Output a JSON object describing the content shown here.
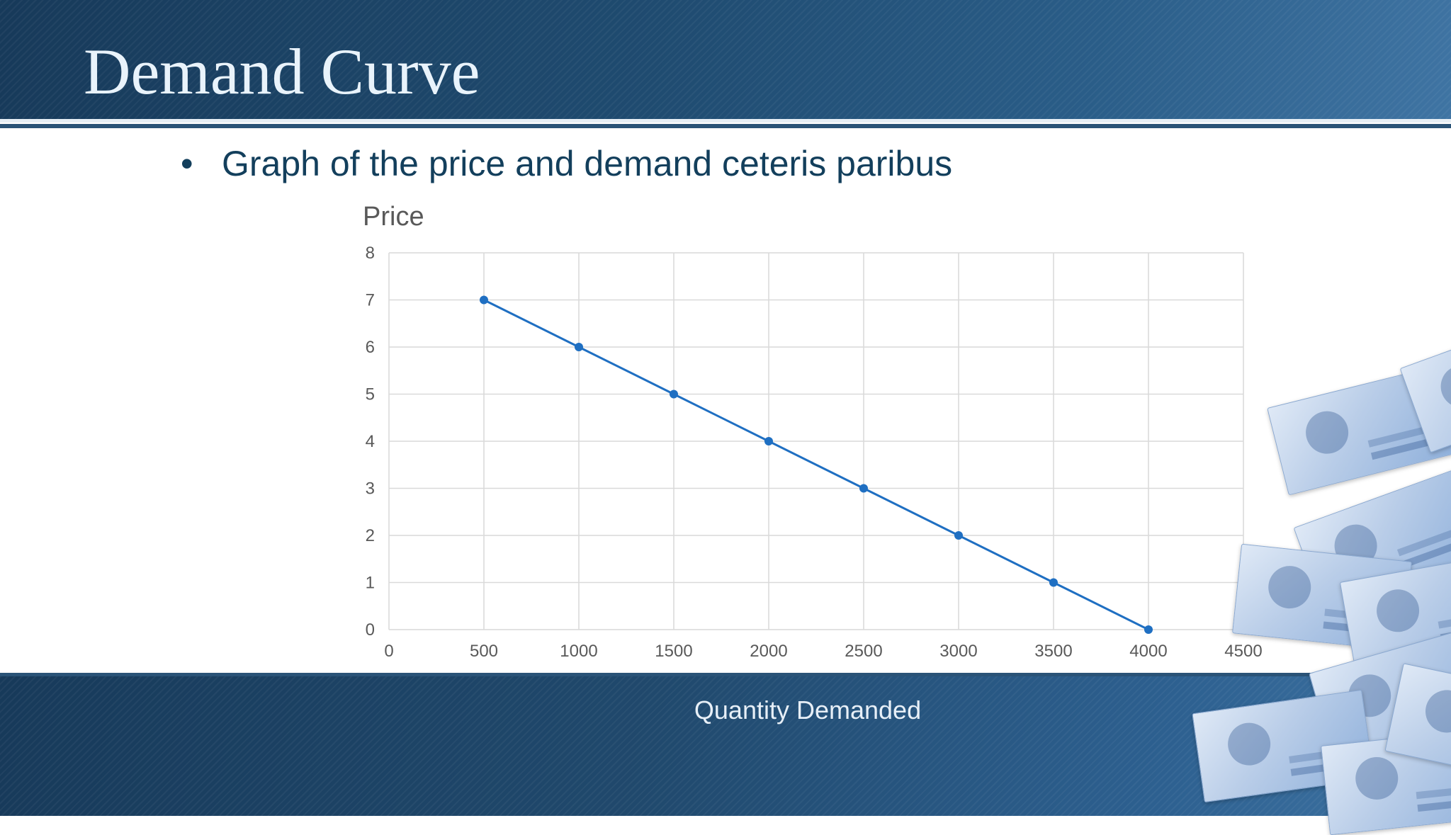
{
  "slide": {
    "title": "Demand Curve",
    "bullet_marker": "•",
    "bullet": "Graph of the price and demand ceteris paribus"
  },
  "colors": {
    "line": "#1f6fc2",
    "grid": "#d9d9d9",
    "tick_text": "#595959",
    "band": "#1f4b70"
  },
  "chart_data": {
    "type": "scatter",
    "title": "Price",
    "xlabel": "Quantity Demanded",
    "ylabel": "",
    "xlim": [
      0,
      4500
    ],
    "ylim": [
      0,
      8
    ],
    "xticks": [
      0,
      500,
      1000,
      1500,
      2000,
      2500,
      3000,
      3500,
      4000,
      4500
    ],
    "yticks": [
      0,
      1,
      2,
      3,
      4,
      5,
      6,
      7,
      8
    ],
    "grid": true,
    "legend": "none",
    "series": [
      {
        "x": [
          500,
          1000,
          1500,
          2000,
          2500,
          3000,
          3500,
          4000
        ],
        "y": [
          7,
          6,
          5,
          4,
          3,
          2,
          1,
          0
        ],
        "style": "line-with-markers"
      }
    ]
  },
  "decoration": {
    "banknotes_icon": "banknotes-collage-icon"
  }
}
